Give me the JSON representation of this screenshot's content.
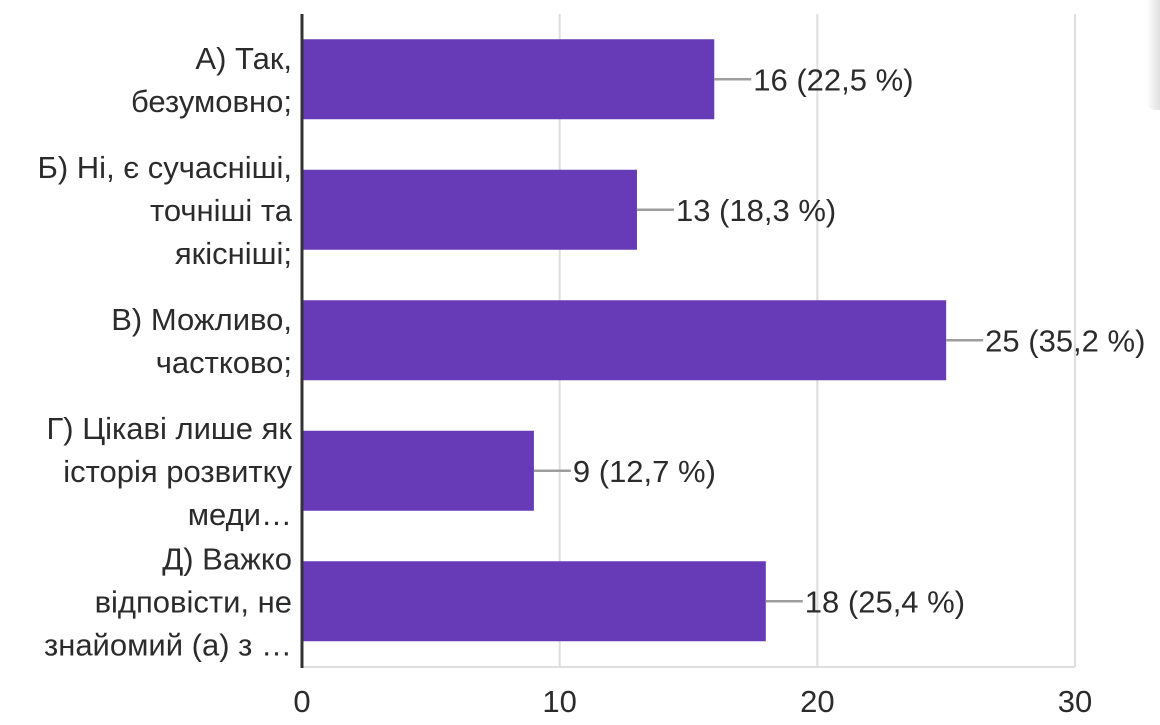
{
  "chart_data": {
    "type": "bar",
    "orientation": "horizontal",
    "categories": [
      [
        "А) Так,",
        "безумовно;"
      ],
      [
        "Б) Ні, є сучасніші,",
        "точніші та",
        "якісніші;"
      ],
      [
        "В) Можливо,",
        "частково;"
      ],
      [
        "Г) Цікаві лише як",
        "історія розвитку",
        "меди…"
      ],
      [
        "Д) Важко",
        "відповісти, не",
        "знайомий (а) з …"
      ]
    ],
    "values": [
      16,
      13,
      25,
      9,
      18
    ],
    "data_labels": [
      "16 (22,5 %)",
      "13 (18,3 %)",
      "25 (35,2 %)",
      "9 (12,7 %)",
      "18 (25,4 %)"
    ],
    "xlim": [
      0,
      30
    ],
    "x_ticks": [
      "0",
      "10",
      "20",
      "30"
    ],
    "grid": "vertical",
    "bar_color": "#673ab7",
    "grid_color": "#dedede",
    "axis_color": "#333333",
    "leader_color": "#9e9e9e",
    "title": "",
    "xlabel": "",
    "ylabel": ""
  }
}
